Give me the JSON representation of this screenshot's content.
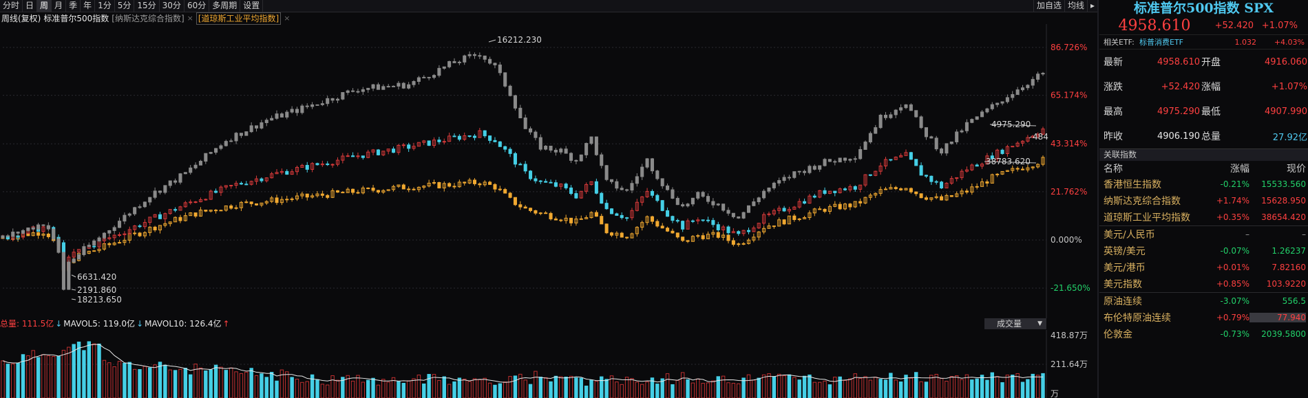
{
  "toolbar": {
    "periods": [
      "分时",
      "日",
      "周",
      "月",
      "季",
      "年",
      "1分",
      "5分",
      "15分",
      "30分",
      "60分",
      "多周期",
      "设置"
    ],
    "active_period": "周",
    "add_self_select": "加自选",
    "ma_label": "均线",
    "arrow_label": "▸"
  },
  "legend": {
    "mode": "周线(复权)",
    "primary": "标准普尔500指数",
    "compare1": "[纳斯达克综合指数]",
    "compare2": "[道琼斯工业平均指数]",
    "close_icon": "×"
  },
  "volume_bar": {
    "total_label": "总量: 111.5亿",
    "mavol5": "MAVOL5: 119.0亿",
    "mavol10": "MAVOL10: 126.4亿",
    "selector": "成交量",
    "y_labels": [
      "418.87万",
      "211.64万",
      "万"
    ]
  },
  "chart_data": {
    "type": "candlestick",
    "y_axis_labels": [
      "86.726%",
      "65.174%",
      "43.314%",
      "21.762%",
      "0.000%",
      "-21.650%"
    ],
    "y_axis_values": [
      86.726,
      65.174,
      43.314,
      21.762,
      0.0,
      -21.65
    ],
    "ylim": [
      -34,
      96
    ],
    "series": [
      {
        "name": "纳斯达克综合指数",
        "color": "#8a8a8a",
        "anchors": [
          [
            0,
            1
          ],
          [
            17,
            8
          ],
          [
            22,
            -6
          ],
          [
            24,
            -22
          ],
          [
            26,
            -10
          ],
          [
            40,
            3
          ],
          [
            58,
            20
          ],
          [
            72,
            30
          ],
          [
            88,
            45
          ],
          [
            104,
            54
          ],
          [
            120,
            60
          ],
          [
            140,
            68
          ],
          [
            160,
            70
          ],
          [
            178,
            80
          ],
          [
            188,
            84
          ],
          [
            194,
            78
          ],
          [
            200,
            66
          ],
          [
            206,
            50
          ],
          [
            212,
            42
          ],
          [
            220,
            40
          ],
          [
            226,
            36
          ],
          [
            232,
            46
          ],
          [
            238,
            26
          ],
          [
            246,
            22
          ],
          [
            254,
            36
          ],
          [
            262,
            22
          ],
          [
            268,
            15
          ],
          [
            274,
            20
          ],
          [
            282,
            16
          ],
          [
            290,
            10
          ],
          [
            300,
            22
          ],
          [
            312,
            30
          ],
          [
            324,
            35
          ],
          [
            336,
            38
          ],
          [
            346,
            55
          ],
          [
            356,
            62
          ],
          [
            362,
            50
          ],
          [
            370,
            40
          ],
          [
            380,
            52
          ],
          [
            390,
            60
          ],
          [
            400,
            68
          ],
          [
            410,
            75
          ]
        ]
      },
      {
        "name": "标准普尔500指数",
        "color": "#d83a3a",
        "alt": "#45cfe6",
        "anchors": [
          [
            0,
            1
          ],
          [
            17,
            6
          ],
          [
            22,
            -2
          ],
          [
            24,
            -12
          ],
          [
            28,
            -6
          ],
          [
            40,
            0
          ],
          [
            60,
            10
          ],
          [
            76,
            18
          ],
          [
            92,
            25
          ],
          [
            108,
            30
          ],
          [
            124,
            34
          ],
          [
            140,
            38
          ],
          [
            160,
            42
          ],
          [
            178,
            46
          ],
          [
            188,
            48
          ],
          [
            194,
            45
          ],
          [
            200,
            38
          ],
          [
            206,
            30
          ],
          [
            212,
            26
          ],
          [
            220,
            24
          ],
          [
            226,
            20
          ],
          [
            232,
            26
          ],
          [
            238,
            14
          ],
          [
            246,
            10
          ],
          [
            254,
            22
          ],
          [
            262,
            12
          ],
          [
            268,
            6
          ],
          [
            274,
            10
          ],
          [
            282,
            6
          ],
          [
            290,
            2
          ],
          [
            300,
            10
          ],
          [
            312,
            16
          ],
          [
            324,
            22
          ],
          [
            336,
            24
          ],
          [
            346,
            34
          ],
          [
            356,
            38
          ],
          [
            362,
            30
          ],
          [
            370,
            24
          ],
          [
            380,
            32
          ],
          [
            390,
            38
          ],
          [
            400,
            44
          ],
          [
            410,
            50
          ]
        ]
      },
      {
        "name": "道琼斯工业平均指数",
        "color": "#f0a830",
        "anchors": [
          [
            0,
            1
          ],
          [
            17,
            4
          ],
          [
            22,
            -4
          ],
          [
            24,
            -14
          ],
          [
            28,
            -8
          ],
          [
            40,
            -3
          ],
          [
            60,
            6
          ],
          [
            76,
            12
          ],
          [
            92,
            16
          ],
          [
            108,
            18
          ],
          [
            124,
            20
          ],
          [
            140,
            22
          ],
          [
            160,
            24
          ],
          [
            178,
            25
          ],
          [
            188,
            26
          ],
          [
            194,
            24
          ],
          [
            200,
            18
          ],
          [
            206,
            14
          ],
          [
            212,
            12
          ],
          [
            220,
            10
          ],
          [
            226,
            8
          ],
          [
            232,
            12
          ],
          [
            238,
            4
          ],
          [
            246,
            2
          ],
          [
            254,
            10
          ],
          [
            262,
            4
          ],
          [
            268,
            -1
          ],
          [
            274,
            2
          ],
          [
            282,
            2
          ],
          [
            290,
            -2
          ],
          [
            300,
            6
          ],
          [
            312,
            10
          ],
          [
            324,
            14
          ],
          [
            336,
            16
          ],
          [
            346,
            22
          ],
          [
            356,
            24
          ],
          [
            362,
            20
          ],
          [
            370,
            18
          ],
          [
            380,
            22
          ],
          [
            390,
            28
          ],
          [
            400,
            32
          ],
          [
            410,
            36
          ]
        ]
      }
    ],
    "annotations": {
      "high": "16212.230",
      "lows": [
        "6631.420",
        "2191.860",
        "18213.650"
      ],
      "last": [
        "4975.290",
        "484",
        "38783.620"
      ]
    }
  },
  "panel": {
    "title": "标准普尔500指数 SPX",
    "price": "4958.610",
    "change": "+52.420",
    "change_pct": "+1.07%",
    "etf_label": "相关ETF:",
    "etf_name": "标普消费ETF",
    "etf_price": "1.032",
    "etf_pct": "+4.03%",
    "stats": [
      {
        "l1": "最新",
        "v1": "4958.610",
        "c1": "red",
        "l2": "开盘",
        "v2": "4916.060",
        "c2": "red"
      },
      {
        "l1": "涨跌",
        "v1": "+52.420",
        "c1": "red",
        "l2": "涨幅",
        "v2": "+1.07%",
        "c2": "red"
      },
      {
        "l1": "最高",
        "v1": "4975.290",
        "c1": "red",
        "l2": "最低",
        "v2": "4907.990",
        "c2": "red"
      },
      {
        "l1": "昨收",
        "v1": "4906.190",
        "c1": "white",
        "l2": "总量",
        "v2": "27.92亿",
        "c2": "cyan"
      }
    ],
    "related_header": "关联指数",
    "columns": {
      "name": "名称",
      "chg": "涨幅",
      "price": "现价"
    },
    "related": [
      {
        "name": "香港恒生指数",
        "chg": "-0.21%",
        "cc": "green",
        "price": "15533.560",
        "pc": "green"
      },
      {
        "name": "纳斯达克综合指数",
        "chg": "+1.74%",
        "cc": "red",
        "price": "15628.950",
        "pc": "red"
      },
      {
        "name": "道琼斯工业平均指数",
        "chg": "+0.35%",
        "cc": "red",
        "price": "38654.420",
        "pc": "red"
      },
      {
        "name": "美元/人民币",
        "chg": "–",
        "cc": "grey",
        "price": "–",
        "pc": "grey",
        "group": true
      },
      {
        "name": "英镑/美元",
        "chg": "-0.07%",
        "cc": "green",
        "price": "1.26237",
        "pc": "green"
      },
      {
        "name": "美元/港币",
        "chg": "+0.01%",
        "cc": "red",
        "price": "7.82160",
        "pc": "red"
      },
      {
        "name": "美元指数",
        "chg": "+0.85%",
        "cc": "red",
        "price": "103.9220",
        "pc": "red"
      },
      {
        "name": "原油连续",
        "chg": "-3.07%",
        "cc": "green",
        "price": "556.5",
        "pc": "green",
        "group": true
      },
      {
        "name": "布伦特原油连续",
        "chg": "+0.79%",
        "cc": "red",
        "price": "77.940",
        "pc": "red",
        "hl": true
      },
      {
        "name": "伦敦金",
        "chg": "-0.73%",
        "cc": "green",
        "price": "2039.5800",
        "pc": "green"
      }
    ]
  }
}
